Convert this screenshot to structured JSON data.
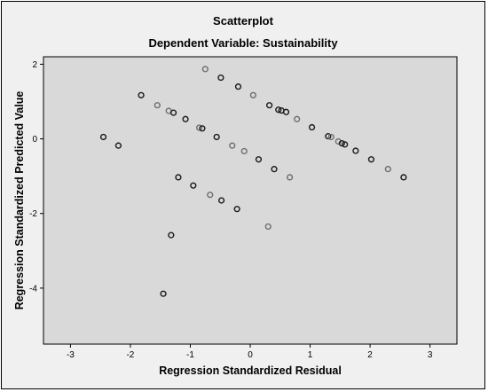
{
  "chart_data": {
    "type": "scatter",
    "title": "Scatterplot",
    "subtitle": "Dependent Variable: Sustainability",
    "xlabel": "Regression Standardized Residual",
    "ylabel": "Regression Standardized Predicted Value",
    "xlim": [
      -3.45,
      3.45
    ],
    "ylim": [
      -5.5,
      2.2
    ],
    "xticks": [
      -3,
      -2,
      -1,
      0,
      1,
      2,
      3
    ],
    "yticks": [
      2,
      0,
      -2,
      -4
    ],
    "grid": false,
    "legend": "none",
    "colors": {
      "background": "#f0f0f0",
      "plot_area": "#d9d9d9",
      "marker_dark": "#1a1a1a",
      "marker_light": "#6e6e6e"
    },
    "points": [
      {
        "x": -0.75,
        "y": 1.87
      },
      {
        "x": -0.49,
        "y": 1.64
      },
      {
        "x": -0.2,
        "y": 1.4
      },
      {
        "x": 0.05,
        "y": 1.17
      },
      {
        "x": -1.82,
        "y": 1.17
      },
      {
        "x": 0.32,
        "y": 0.9
      },
      {
        "x": -1.55,
        "y": 0.9
      },
      {
        "x": 0.47,
        "y": 0.78
      },
      {
        "x": 0.52,
        "y": 0.76
      },
      {
        "x": -1.36,
        "y": 0.75
      },
      {
        "x": 0.6,
        "y": 0.72
      },
      {
        "x": -1.28,
        "y": 0.7
      },
      {
        "x": 0.78,
        "y": 0.53
      },
      {
        "x": -1.08,
        "y": 0.53
      },
      {
        "x": 1.03,
        "y": 0.31
      },
      {
        "x": -0.85,
        "y": 0.3
      },
      {
        "x": -0.8,
        "y": 0.28
      },
      {
        "x": 1.3,
        "y": 0.07
      },
      {
        "x": 1.35,
        "y": 0.05
      },
      {
        "x": -0.56,
        "y": 0.05
      },
      {
        "x": -2.45,
        "y": 0.05
      },
      {
        "x": 1.47,
        "y": -0.07
      },
      {
        "x": 1.53,
        "y": -0.12
      },
      {
        "x": 1.58,
        "y": -0.15
      },
      {
        "x": -0.3,
        "y": -0.18
      },
      {
        "x": -2.2,
        "y": -0.18
      },
      {
        "x": 1.76,
        "y": -0.32
      },
      {
        "x": -0.1,
        "y": -0.33
      },
      {
        "x": 2.02,
        "y": -0.55
      },
      {
        "x": 0.14,
        "y": -0.55
      },
      {
        "x": 2.3,
        "y": -0.81
      },
      {
        "x": 0.4,
        "y": -0.81
      },
      {
        "x": 2.56,
        "y": -1.03
      },
      {
        "x": 0.66,
        "y": -1.03
      },
      {
        "x": -1.2,
        "y": -1.03
      },
      {
        "x": -0.95,
        "y": -1.25
      },
      {
        "x": -0.67,
        "y": -1.5
      },
      {
        "x": -0.48,
        "y": -1.65
      },
      {
        "x": -0.22,
        "y": -1.88
      },
      {
        "x": 0.3,
        "y": -2.35
      },
      {
        "x": -1.32,
        "y": -2.58
      },
      {
        "x": -1.45,
        "y": -4.15
      }
    ]
  }
}
